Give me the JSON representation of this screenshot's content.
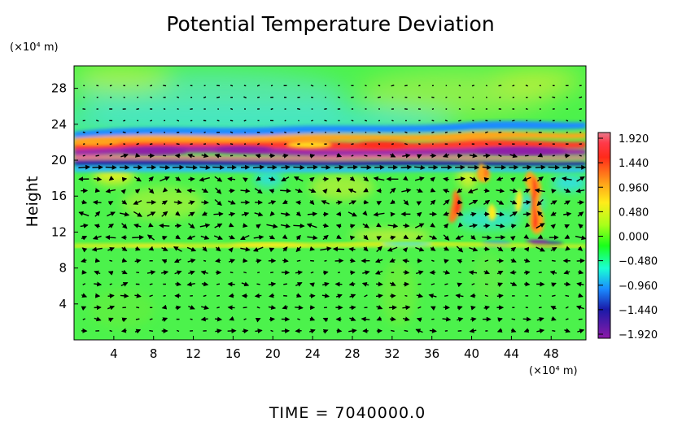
{
  "chart_data": {
    "type": "heatmap",
    "title": "Potential Temperature Deviation",
    "ylabel": "Height",
    "x_unit_label": "(×10⁴ m)",
    "y_unit_label": "(×10⁴ m)",
    "x_ticks": [
      4,
      8,
      12,
      16,
      20,
      24,
      28,
      32,
      36,
      40,
      44,
      48
    ],
    "y_ticks": [
      4,
      8,
      12,
      16,
      20,
      24,
      28
    ],
    "xlim": [
      0,
      51.5
    ],
    "ylim": [
      0,
      30.5
    ],
    "colorbar": {
      "ticks": [
        "1.920",
        "1.440",
        "0.960",
        "0.480",
        "0.000",
        "−0.480",
        "−0.960",
        "−1.440",
        "−1.920"
      ],
      "range": [
        -1.92,
        1.92
      ],
      "colors": [
        "#e87a8c",
        "#ff2a1a",
        "#ffa51a",
        "#ffec1a",
        "#a8ff1a",
        "#1aff1a",
        "#1affd4",
        "#1a8cff",
        "#1a1aa8",
        "#8c1aa8"
      ]
    },
    "overlay": "wind vectors (arrows)",
    "grid": false,
    "legend": "colorbar right"
  },
  "footer": {
    "time_label": "TIME = 7040000.0"
  }
}
